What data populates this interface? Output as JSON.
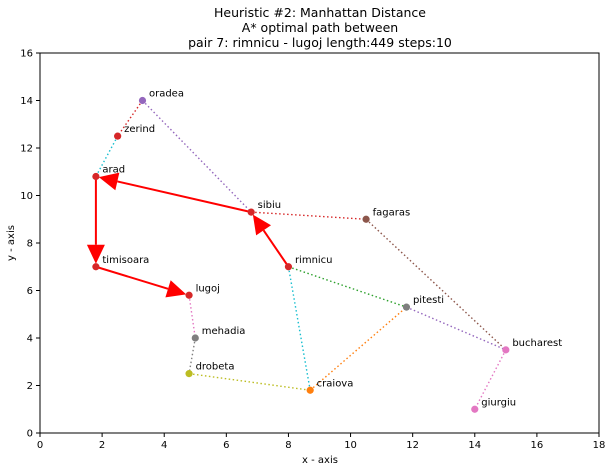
{
  "chart_data": {
    "type": "scatter",
    "title_lines": [
      "Heuristic #2: Manhattan Distance",
      "A* optimal path between",
      "pair 7: rimnicu - lugoj length:449 steps:10"
    ],
    "xlabel": "x - axis",
    "ylabel": "y - axis",
    "xlim": [
      0,
      18
    ],
    "ylim": [
      0,
      16
    ],
    "xticks": [
      0,
      2,
      4,
      6,
      8,
      10,
      12,
      14,
      16,
      18
    ],
    "yticks": [
      0,
      2,
      4,
      6,
      8,
      10,
      12,
      14,
      16
    ],
    "grid": false,
    "nodes": [
      {
        "name": "oradea",
        "x": 3.3,
        "y": 14.0,
        "color": "#9467bd"
      },
      {
        "name": "zerind",
        "x": 2.5,
        "y": 12.5,
        "color": "#d62728"
      },
      {
        "name": "arad",
        "x": 1.8,
        "y": 10.8,
        "color": "#d62728"
      },
      {
        "name": "sibiu",
        "x": 6.8,
        "y": 9.3,
        "color": "#d62728"
      },
      {
        "name": "fagaras",
        "x": 10.5,
        "y": 9.0,
        "color": "#8c564b"
      },
      {
        "name": "timisoara",
        "x": 1.8,
        "y": 7.0,
        "color": "#d62728"
      },
      {
        "name": "rimnicu",
        "x": 8.0,
        "y": 7.0,
        "color": "#d62728"
      },
      {
        "name": "lugoj",
        "x": 4.8,
        "y": 5.8,
        "color": "#d62728"
      },
      {
        "name": "pitesti",
        "x": 11.8,
        "y": 5.3,
        "color": "#7f7f7f"
      },
      {
        "name": "mehadia",
        "x": 5.0,
        "y": 4.0,
        "color": "#7f7f7f"
      },
      {
        "name": "bucharest",
        "x": 15.0,
        "y": 3.5,
        "color": "#e377c2"
      },
      {
        "name": "drobeta",
        "x": 4.8,
        "y": 2.5,
        "color": "#bcbd22"
      },
      {
        "name": "craiova",
        "x": 8.7,
        "y": 1.8,
        "color": "#ff7f0e"
      },
      {
        "name": "giurgiu",
        "x": 14.0,
        "y": 1.0,
        "color": "#e377c2"
      }
    ],
    "edges": [
      {
        "from": "oradea",
        "to": "zerind",
        "color": "#d62728"
      },
      {
        "from": "zerind",
        "to": "arad",
        "color": "#17becf"
      },
      {
        "from": "oradea",
        "to": "sibiu",
        "color": "#9467bd"
      },
      {
        "from": "sibiu",
        "to": "fagaras",
        "color": "#d62728"
      },
      {
        "from": "fagaras",
        "to": "bucharest",
        "color": "#8c564b"
      },
      {
        "from": "rimnicu",
        "to": "pitesti",
        "color": "#2ca02c"
      },
      {
        "from": "rimnicu",
        "to": "craiova",
        "color": "#17becf"
      },
      {
        "from": "pitesti",
        "to": "bucharest",
        "color": "#9467bd"
      },
      {
        "from": "craiova",
        "to": "pitesti",
        "color": "#ff7f0e"
      },
      {
        "from": "drobeta",
        "to": "craiova",
        "color": "#bcbd22"
      },
      {
        "from": "lugoj",
        "to": "mehadia",
        "color": "#e377c2"
      },
      {
        "from": "mehadia",
        "to": "drobeta",
        "color": "#7f7f7f"
      },
      {
        "from": "bucharest",
        "to": "giurgiu",
        "color": "#e377c2"
      }
    ],
    "path": [
      "rimnicu",
      "sibiu",
      "arad",
      "timisoara",
      "lugoj"
    ],
    "path_color": "#ff0000"
  }
}
